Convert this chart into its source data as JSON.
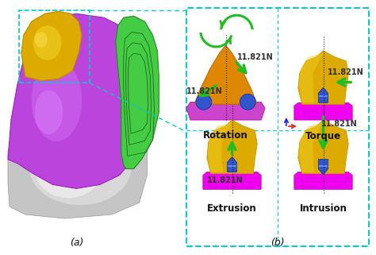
{
  "title_a": "(a)",
  "title_b": "(b)",
  "label_extrusion": "Extrusion",
  "label_intrusion": "Intrusion",
  "label_rotation": "Rotation",
  "label_torque": "Torque",
  "force_label": "11.821N",
  "bg_color": "#ffffff",
  "cyan_border": "#00cccc",
  "magenta": "#ee00ee",
  "gold_tooth": "#ddaa00",
  "green_arrow": "#22bb22",
  "purple_body": "#bb44dd",
  "gray_base": "#c0c0c0",
  "blue_bracket": "#2244cc",
  "orange_tooth": "#dd8800",
  "dashed_color": "#222222",
  "text_color": "#111111",
  "label_fontsize": 8.5,
  "force_fontsize": 7.0,
  "coord_red": "#dd2222",
  "coord_blue": "#2222dd"
}
